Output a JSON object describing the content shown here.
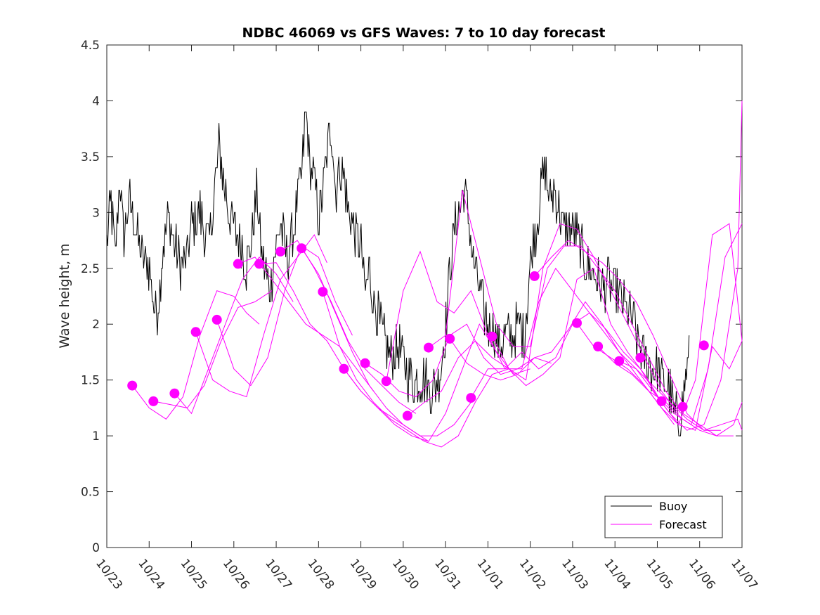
{
  "chart_data": {
    "type": "line",
    "title": "NDBC 46069 vs GFS Waves: 7 to 10 day forecast",
    "xlabel": "",
    "ylabel": "Wave height, m",
    "xlim": [
      0,
      15
    ],
    "ylim": [
      0,
      4.5
    ],
    "yticks": [
      0,
      0.5,
      1,
      1.5,
      2,
      2.5,
      3,
      3.5,
      4,
      4.5
    ],
    "ytick_labels": [
      "0",
      "0.5",
      "1",
      "1.5",
      "2",
      "2.5",
      "3",
      "3.5",
      "4",
      "4.5"
    ],
    "xtick_labels": [
      "10/23",
      "10/24",
      "10/25",
      "10/26",
      "10/27",
      "10/28",
      "10/29",
      "10/30",
      "10/31",
      "11/01",
      "11/02",
      "11/03",
      "11/04",
      "11/05",
      "11/06",
      "11/07"
    ],
    "x_units": "days since 10/23",
    "colors": {
      "buoy": "#000000",
      "forecast": "#ff00ff"
    },
    "legend": {
      "location": "bottom-right",
      "entries": [
        {
          "label": "Buoy",
          "color": "#000000"
        },
        {
          "label": "Forecast",
          "color": "#ff00ff"
        }
      ]
    },
    "buoy_anchors": [
      [
        0,
        2.7
      ],
      [
        0.1,
        3.1
      ],
      [
        0.2,
        2.6
      ],
      [
        0.3,
        3.3
      ],
      [
        0.4,
        2.8
      ],
      [
        0.55,
        3.1
      ],
      [
        0.7,
        2.8
      ],
      [
        0.85,
        2.6
      ],
      [
        1.0,
        2.5
      ],
      [
        1.1,
        2.2
      ],
      [
        1.2,
        2.1
      ],
      [
        1.3,
        2.6
      ],
      [
        1.45,
        3.0
      ],
      [
        1.6,
        2.7
      ],
      [
        1.75,
        2.5
      ],
      [
        1.9,
        2.6
      ],
      [
        2.0,
        2.9
      ],
      [
        2.2,
        3.0
      ],
      [
        2.4,
        2.7
      ],
      [
        2.55,
        3.2
      ],
      [
        2.65,
        3.6
      ],
      [
        2.75,
        3.3
      ],
      [
        2.9,
        3.0
      ],
      [
        3.05,
        2.8
      ],
      [
        3.2,
        2.7
      ],
      [
        3.3,
        2.5
      ],
      [
        3.4,
        2.7
      ],
      [
        3.55,
        3.2
      ],
      [
        3.65,
        2.6
      ],
      [
        3.75,
        2.5
      ],
      [
        3.85,
        2.3
      ],
      [
        3.95,
        2.6
      ],
      [
        4.1,
        2.9
      ],
      [
        4.25,
        2.6
      ],
      [
        4.4,
        2.8
      ],
      [
        4.5,
        3.1
      ],
      [
        4.6,
        3.3
      ],
      [
        4.7,
        3.9
      ],
      [
        4.8,
        3.4
      ],
      [
        4.9,
        3.3
      ],
      [
        5.0,
        2.9
      ],
      [
        5.1,
        3.2
      ],
      [
        5.2,
        3.5
      ],
      [
        5.3,
        3.8
      ],
      [
        5.4,
        3.2
      ],
      [
        5.5,
        3.4
      ],
      [
        5.6,
        3.3
      ],
      [
        5.7,
        3.0
      ],
      [
        5.8,
        2.9
      ],
      [
        5.9,
        2.8
      ],
      [
        6.0,
        2.7
      ],
      [
        6.1,
        2.3
      ],
      [
        6.2,
        2.5
      ],
      [
        6.3,
        2.2
      ],
      [
        6.45,
        2.0
      ],
      [
        6.6,
        1.8
      ],
      [
        6.75,
        1.7
      ],
      [
        6.9,
        1.8
      ],
      [
        7.05,
        1.6
      ],
      [
        7.2,
        1.5
      ],
      [
        7.35,
        1.5
      ],
      [
        7.5,
        1.5
      ],
      [
        7.65,
        1.4
      ],
      [
        7.8,
        1.5
      ],
      [
        7.9,
        1.6
      ],
      [
        8.0,
        2.0
      ],
      [
        8.1,
        2.5
      ],
      [
        8.2,
        2.8
      ],
      [
        8.3,
        3.0
      ],
      [
        8.45,
        3.2
      ],
      [
        8.55,
        2.9
      ],
      [
        8.65,
        2.6
      ],
      [
        8.75,
        2.4
      ],
      [
        8.85,
        2.2
      ],
      [
        9.0,
        2.0
      ],
      [
        9.15,
        1.9
      ],
      [
        9.3,
        1.8
      ],
      [
        9.45,
        1.9
      ],
      [
        9.6,
        1.9
      ],
      [
        9.75,
        2.0
      ],
      [
        9.85,
        1.9
      ],
      [
        9.95,
        2.3
      ],
      [
        10.05,
        2.7
      ],
      [
        10.15,
        2.9
      ],
      [
        10.25,
        3.2
      ],
      [
        10.35,
        3.4
      ],
      [
        10.45,
        3.1
      ],
      [
        10.55,
        3.2
      ],
      [
        10.7,
        3.0
      ],
      [
        10.8,
        2.8
      ],
      [
        10.95,
        2.9
      ],
      [
        11.1,
        2.8
      ],
      [
        11.25,
        2.6
      ],
      [
        11.4,
        2.5
      ],
      [
        11.55,
        2.4
      ],
      [
        11.7,
        2.3
      ],
      [
        11.85,
        2.4
      ],
      [
        12.0,
        2.3
      ],
      [
        12.15,
        2.2
      ],
      [
        12.3,
        2.1
      ],
      [
        12.45,
        2.0
      ],
      [
        12.55,
        1.8
      ],
      [
        12.7,
        1.7
      ],
      [
        12.85,
        1.6
      ],
      [
        13.0,
        1.6
      ],
      [
        13.15,
        1.5
      ],
      [
        13.3,
        1.4
      ],
      [
        13.4,
        1.2
      ],
      [
        13.5,
        1.1
      ],
      [
        13.6,
        1.3
      ],
      [
        13.7,
        1.6
      ],
      [
        13.75,
        1.7
      ]
    ],
    "forecast_series": [
      {
        "name": "f01",
        "x": [
          0.6,
          1.0,
          1.4,
          1.8,
          2.2,
          2.6,
          3.0,
          3.3,
          3.6
        ],
        "y": [
          1.45,
          1.25,
          1.15,
          1.35,
          1.9,
          2.3,
          2.25,
          2.1,
          2.0
        ]
      },
      {
        "name": "f02",
        "x": [
          1.1,
          1.5,
          1.9,
          2.3,
          2.7,
          3.1,
          3.5,
          3.9
        ],
        "y": [
          1.31,
          1.28,
          1.25,
          1.45,
          1.85,
          2.15,
          2.2,
          2.3
        ]
      },
      {
        "name": "f03",
        "x": [
          1.6,
          2.0,
          2.4,
          2.8,
          3.2,
          3.6,
          4.0,
          4.4
        ],
        "y": [
          1.38,
          1.2,
          1.6,
          2.0,
          2.4,
          2.6,
          2.45,
          2.2
        ]
      },
      {
        "name": "f04",
        "x": [
          2.1,
          2.5,
          2.9,
          3.3,
          3.7,
          4.1,
          4.5,
          4.9,
          5.2
        ],
        "y": [
          1.93,
          1.5,
          1.4,
          1.35,
          1.9,
          2.4,
          2.6,
          2.8,
          2.55
        ]
      },
      {
        "name": "f05",
        "x": [
          2.6,
          3.0,
          3.4,
          3.8,
          4.2,
          4.6,
          5.0,
          5.4,
          5.8
        ],
        "y": [
          2.04,
          1.6,
          1.45,
          1.7,
          2.3,
          2.7,
          2.6,
          2.2,
          1.9
        ]
      },
      {
        "name": "f06",
        "x": [
          3.1,
          3.5,
          3.9,
          4.3,
          4.7,
          5.1,
          5.5,
          5.9,
          6.3
        ],
        "y": [
          2.54,
          2.6,
          2.4,
          2.2,
          2.0,
          1.9,
          1.8,
          1.6,
          1.4
        ]
      },
      {
        "name": "f07",
        "x": [
          3.6,
          4.0,
          4.4,
          4.8,
          5.2,
          5.6,
          6.0,
          6.4,
          6.8,
          7.2,
          7.6
        ],
        "y": [
          2.54,
          2.55,
          2.3,
          2.0,
          1.85,
          1.6,
          1.4,
          1.25,
          1.1,
          1.0,
          0.95
        ]
      },
      {
        "name": "f08",
        "x": [
          4.1,
          4.5,
          4.9,
          5.3,
          5.7,
          6.1,
          6.5,
          6.9,
          7.3
        ],
        "y": [
          2.65,
          2.75,
          2.5,
          2.2,
          1.85,
          1.6,
          1.45,
          1.3,
          1.2
        ]
      },
      {
        "name": "f09",
        "x": [
          4.6,
          5.0,
          5.4,
          5.8,
          6.2,
          6.6,
          7.0,
          7.4,
          7.8,
          8.2,
          8.6
        ],
        "y": [
          2.68,
          2.45,
          2.1,
          1.75,
          1.45,
          1.25,
          1.1,
          1.0,
          1.0,
          1.1,
          1.3
        ]
      },
      {
        "name": "f10",
        "x": [
          5.1,
          5.5,
          5.9,
          6.3,
          6.7,
          7.1,
          7.5,
          7.9,
          8.3,
          8.7,
          9.1,
          9.5
        ],
        "y": [
          2.29,
          1.8,
          1.5,
          1.3,
          1.15,
          1.05,
          0.95,
          0.9,
          1.0,
          1.3,
          1.55,
          1.6
        ]
      },
      {
        "name": "f11",
        "x": [
          5.6,
          6.0,
          6.4,
          6.8,
          7.2,
          7.6,
          8.0,
          8.4,
          8.8,
          9.2,
          9.6,
          10.0
        ],
        "y": [
          1.6,
          1.4,
          1.25,
          1.15,
          1.05,
          0.95,
          1.2,
          1.6,
          2.0,
          1.75,
          1.55,
          1.6
        ]
      },
      {
        "name": "f12",
        "x": [
          6.1,
          6.5,
          6.9,
          7.3,
          7.7,
          8.1,
          8.5,
          8.9,
          9.3,
          9.7,
          10.1,
          10.5
        ],
        "y": [
          1.65,
          1.55,
          1.4,
          1.35,
          1.5,
          1.9,
          2.0,
          1.7,
          1.55,
          1.6,
          1.7,
          1.65
        ]
      },
      {
        "name": "f13",
        "x": [
          6.6,
          7.0,
          7.4,
          7.8,
          8.2,
          8.6,
          9.0,
          9.4,
          9.8,
          10.2,
          10.6,
          11.0,
          11.4,
          11.8,
          12.2,
          12.6,
          13.0,
          13.4
        ],
        "y": [
          1.49,
          2.3,
          2.65,
          2.2,
          2.1,
          2.3,
          1.9,
          1.6,
          1.6,
          2.2,
          2.5,
          2.3,
          2.1,
          1.9,
          1.7,
          1.5,
          1.3,
          1.1
        ]
      },
      {
        "name": "f14",
        "x": [
          7.1,
          7.5,
          7.9,
          8.3,
          8.7,
          9.1,
          9.5,
          9.9,
          10.3,
          10.7,
          11.1,
          11.5,
          11.9,
          12.3,
          12.7,
          13.1,
          13.5
        ],
        "y": [
          1.18,
          1.3,
          1.4,
          1.7,
          1.85,
          1.7,
          1.6,
          1.5,
          2.5,
          2.9,
          2.85,
          2.6,
          2.3,
          2.0,
          1.7,
          1.4,
          1.2
        ]
      },
      {
        "name": "f15",
        "x": [
          7.6,
          8.0,
          8.4,
          8.8,
          9.2,
          9.6,
          10.0,
          10.4,
          10.8,
          11.2,
          11.6,
          12.0,
          12.4,
          12.8,
          13.2,
          13.6,
          14.0,
          14.4,
          14.8,
          15.0
        ],
        "y": [
          1.79,
          1.9,
          3.2,
          2.6,
          2.0,
          1.8,
          1.8,
          2.5,
          2.7,
          2.7,
          2.5,
          2.3,
          2.0,
          1.7,
          1.4,
          1.2,
          1.1,
          1.0,
          1.1,
          1.3
        ]
      },
      {
        "name": "f16",
        "x": [
          8.1,
          8.5,
          8.9,
          9.3,
          9.7,
          10.1,
          10.5,
          10.9,
          11.3,
          11.7,
          12.1,
          12.5,
          12.9,
          13.3,
          13.7,
          14.1,
          14.5,
          14.9,
          15.0
        ],
        "y": [
          1.87,
          1.65,
          1.55,
          1.5,
          1.55,
          1.7,
          1.75,
          1.95,
          2.2,
          2.0,
          1.75,
          1.6,
          1.4,
          1.2,
          1.05,
          1.1,
          1.5,
          2.5,
          4.0
        ]
      },
      {
        "name": "f17",
        "x": [
          8.6,
          9.0,
          9.4,
          9.8,
          10.2,
          10.6,
          11.0,
          11.4,
          11.8,
          12.2,
          12.6,
          13.0,
          13.4,
          13.8,
          14.2,
          14.6,
          15.0
        ],
        "y": [
          1.34,
          1.6,
          1.6,
          1.75,
          1.6,
          1.7,
          2.0,
          2.1,
          1.95,
          1.75,
          1.6,
          1.35,
          1.2,
          1.1,
          1.6,
          2.6,
          2.9
        ]
      },
      {
        "name": "f18",
        "x": [
          9.1,
          9.5,
          9.9,
          10.3,
          10.7,
          11.1,
          11.5,
          11.9,
          12.3,
          12.7,
          13.1,
          13.5,
          13.9,
          14.3,
          14.7,
          15.0
        ],
        "y": [
          1.89,
          1.6,
          1.45,
          1.55,
          1.7,
          2.4,
          2.5,
          2.0,
          1.75,
          1.55,
          1.3,
          1.1,
          1.05,
          1.8,
          1.6,
          1.85
        ]
      },
      {
        "name": "f19",
        "x": [
          10.1,
          10.5,
          10.9,
          11.3,
          11.7,
          12.1,
          12.5,
          12.9,
          13.3,
          13.7,
          14.1,
          14.5
        ],
        "y": [
          2.43,
          2.6,
          2.75,
          2.65,
          2.55,
          2.4,
          2.2,
          1.9,
          1.55,
          1.2,
          1.05,
          1.05
        ]
      },
      {
        "name": "f20",
        "x": [
          11.1,
          11.5,
          11.9,
          12.3,
          12.7,
          13.1,
          13.5,
          13.9,
          14.3,
          14.7,
          15.0
        ],
        "y": [
          2.01,
          1.8,
          1.7,
          1.6,
          1.45,
          1.25,
          1.1,
          1.5,
          2.8,
          2.9,
          1.85
        ]
      },
      {
        "name": "f21",
        "x": [
          11.6,
          12.0,
          12.4,
          12.8,
          13.2,
          13.6,
          14.0,
          14.4,
          14.8
        ],
        "y": [
          1.8,
          1.65,
          1.55,
          1.4,
          1.3,
          1.15,
          1.05,
          1.0,
          1.0
        ]
      },
      {
        "name": "f22",
        "x": [
          12.1,
          12.5,
          12.9,
          13.3,
          13.7,
          14.1,
          14.5,
          14.9,
          15.0
        ],
        "y": [
          1.67,
          1.6,
          1.45,
          1.3,
          1.15,
          1.05,
          1.1,
          1.15,
          1.05
        ]
      }
    ],
    "forecast_markers": {
      "x": [
        0.6,
        1.1,
        1.6,
        2.1,
        2.6,
        3.1,
        3.6,
        4.1,
        4.6,
        5.1,
        5.6,
        6.1,
        6.6,
        7.1,
        7.6,
        8.1,
        8.6,
        9.1,
        10.1,
        11.1,
        11.6,
        12.1,
        12.6,
        13.1,
        13.6,
        14.1
      ],
      "y": [
        1.45,
        1.31,
        1.38,
        1.93,
        2.04,
        2.54,
        2.54,
        2.65,
        2.68,
        2.29,
        1.6,
        1.65,
        1.49,
        1.18,
        1.79,
        1.87,
        1.34,
        1.89,
        2.43,
        2.01,
        1.8,
        1.67,
        1.7,
        1.31,
        1.26,
        1.81
      ]
    }
  }
}
